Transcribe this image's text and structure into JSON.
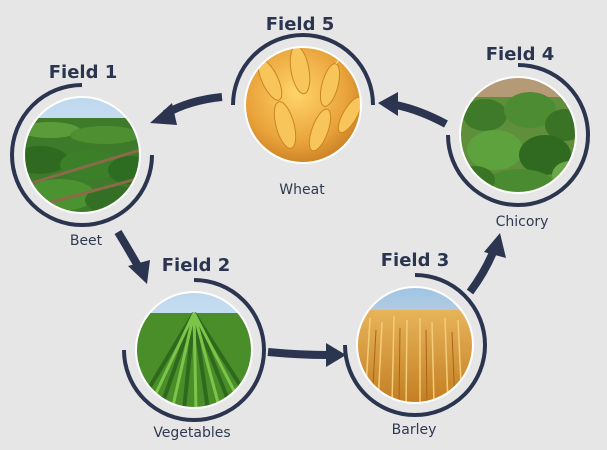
{
  "fields": [
    {
      "key": "field1",
      "title": "Field 1",
      "crop": "Beet",
      "image": "beet-crop-photo"
    },
    {
      "key": "field2",
      "title": "Field 2",
      "crop": "Vegetables",
      "image": "vegetable-rows-photo"
    },
    {
      "key": "field3",
      "title": "Field 3",
      "crop": "Barley",
      "image": "barley-field-photo"
    },
    {
      "key": "field4",
      "title": "Field 4",
      "crop": "Chicory",
      "image": "chicory-leaves-photo"
    },
    {
      "key": "field5",
      "title": "Field 5",
      "crop": "Wheat",
      "image": "wheat-ears-photo"
    }
  ],
  "colors": {
    "background": "#e6e6e6",
    "ring": "#2b3550",
    "arrow": "#2b3550",
    "text": "#2b3550"
  }
}
